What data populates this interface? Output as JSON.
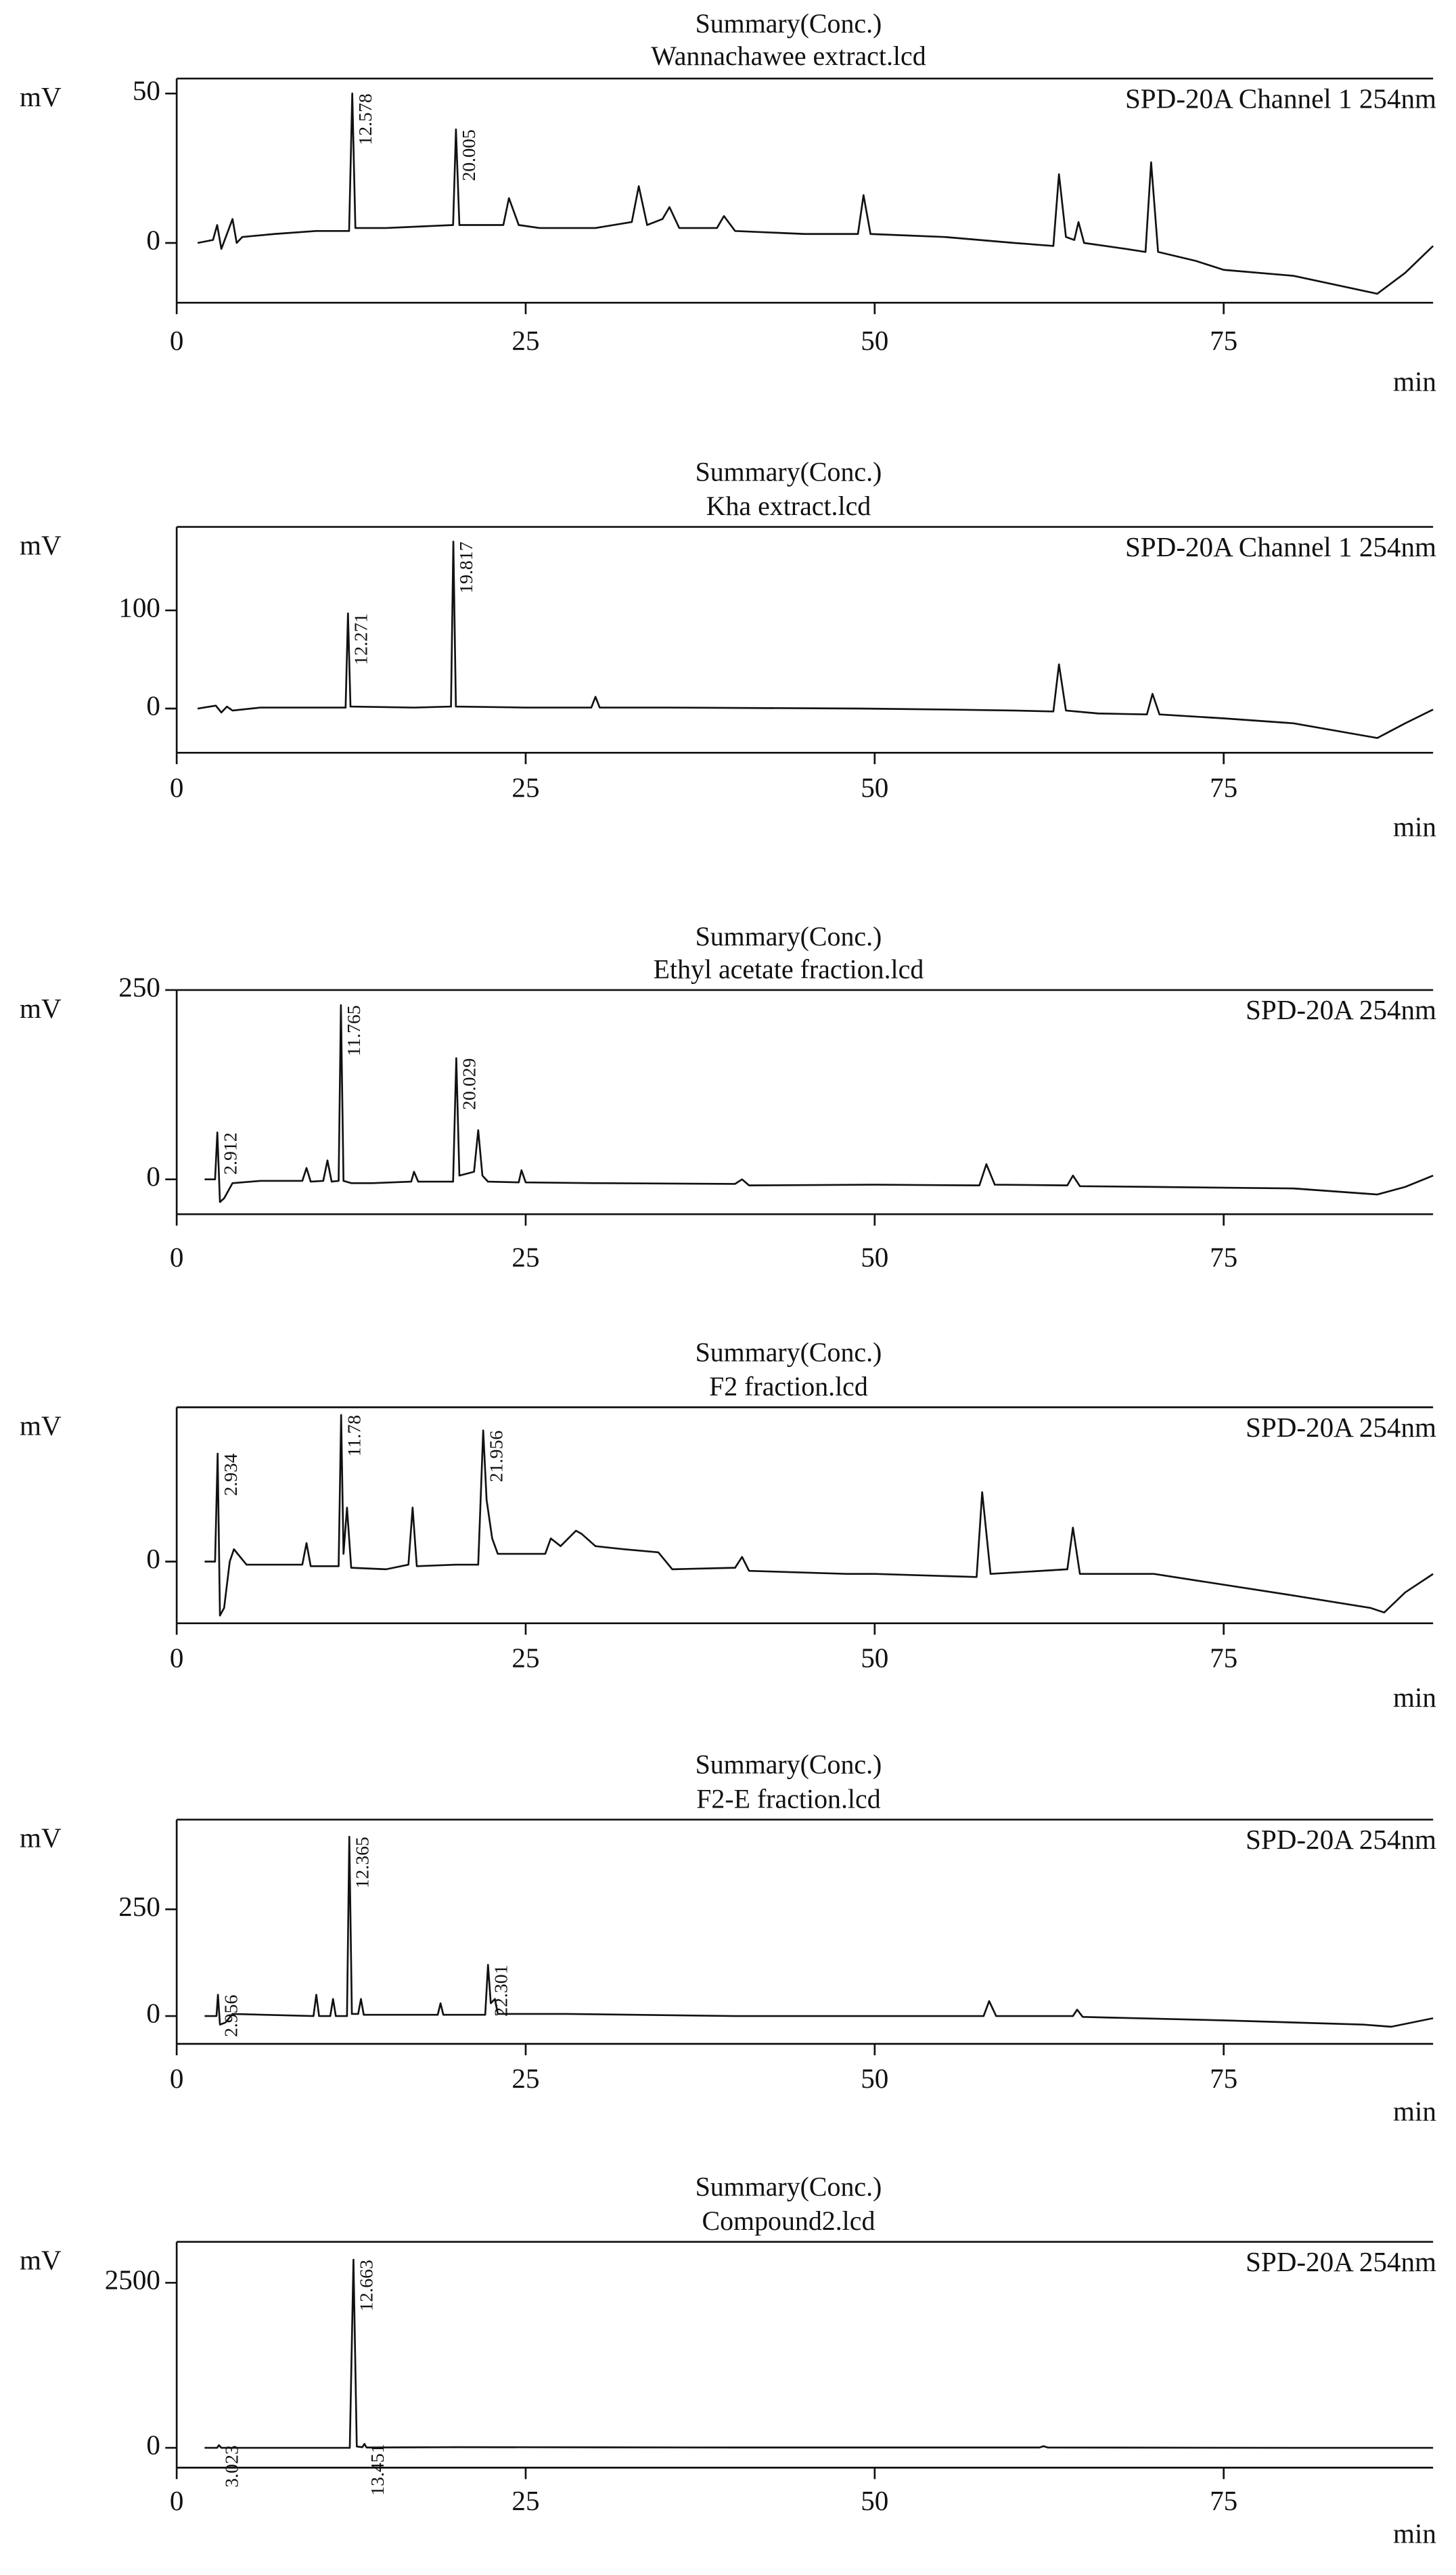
{
  "chart_data": [
    {
      "type": "line",
      "title": "Summary(Conc.)",
      "subtitle": "Wannachawee extract.lcd",
      "ylabel": "mV",
      "xlabel": "min",
      "annotation": "SPD-20A Channel 1 254nm",
      "color": "#111111",
      "xlim": [
        0,
        90
      ],
      "xticks": [
        0,
        25,
        50,
        75
      ],
      "ylim": [
        -20,
        55
      ],
      "yticks": [
        0,
        50
      ],
      "peak_labels": [
        12.578,
        20.005
      ],
      "x": [
        1.5,
        2.6,
        2.9,
        3.2,
        3.6,
        4.0,
        4.3,
        4.7,
        7,
        10,
        12.35,
        12.578,
        12.8,
        15,
        19.8,
        20.005,
        20.25,
        23.4,
        23.8,
        24.5,
        26,
        30,
        32.6,
        33.1,
        33.7,
        34.8,
        35.3,
        36,
        38.7,
        39.2,
        40,
        45,
        48.8,
        49.2,
        49.7,
        55,
        60,
        62.8,
        63.2,
        63.7,
        64.3,
        64.6,
        65,
        68,
        69.4,
        69.8,
        70.3,
        73,
        75,
        80,
        86,
        88,
        90
      ],
      "values": [
        0,
        1,
        6,
        -2,
        3,
        8,
        0,
        2,
        3,
        4,
        4,
        50,
        5,
        5,
        6,
        38,
        6,
        6,
        15,
        6,
        5,
        5,
        7,
        19,
        6,
        8,
        12,
        5,
        5,
        9,
        4,
        3,
        3,
        16,
        3,
        2,
        0,
        -1,
        23,
        2,
        1,
        7,
        0,
        -2,
        -3,
        27,
        -3,
        -6,
        -9,
        -11,
        -17,
        -10,
        -1
      ]
    },
    {
      "type": "line",
      "title": "Summary(Conc.)",
      "subtitle": "Kha extract.lcd",
      "ylabel": "mV",
      "xlabel": "min",
      "annotation": "SPD-20A Channel 1 254nm",
      "color": "#111111",
      "xlim": [
        0,
        90
      ],
      "xticks": [
        0,
        25,
        50,
        75
      ],
      "ylim": [
        -45,
        185
      ],
      "yticks": [
        0,
        100
      ],
      "peak_labels": [
        12.271,
        19.817
      ],
      "x": [
        1.5,
        2.8,
        3.2,
        3.6,
        4,
        6,
        10,
        12.1,
        12.271,
        12.45,
        17,
        19.65,
        19.817,
        20,
        25,
        29.7,
        30,
        30.3,
        35,
        49,
        55,
        60,
        62.8,
        63.2,
        63.7,
        66,
        69.5,
        69.9,
        70.4,
        75,
        80,
        86,
        88,
        90
      ],
      "values": [
        0,
        3,
        -4,
        2,
        -2,
        1,
        1,
        1,
        97,
        2,
        1,
        2,
        170,
        2,
        1,
        1,
        12,
        1,
        1,
        0,
        -1,
        -2,
        -3,
        45,
        -2,
        -5,
        -6,
        15,
        -6,
        -10,
        -15,
        -30,
        -15,
        -1
      ]
    },
    {
      "type": "line",
      "title": "Summary(Conc.)",
      "subtitle": "Ethyl acetate fraction.lcd",
      "ylabel": "mV",
      "annotation": "SPD-20A 254nm",
      "color": "#111111",
      "xlim": [
        0,
        90
      ],
      "xticks": [
        0,
        25,
        50,
        75
      ],
      "ylim": [
        -46,
        250
      ],
      "yticks": [
        0,
        250
      ],
      "peak_labels": [
        2.912,
        11.765,
        20.029
      ],
      "x": [
        2,
        2.75,
        2.912,
        3.1,
        3.4,
        4,
        6,
        9,
        9.3,
        9.6,
        10.5,
        10.8,
        11.1,
        11.6,
        11.765,
        11.95,
        12.5,
        14,
        16.8,
        17,
        17.3,
        19.8,
        20.029,
        20.25,
        21.3,
        21.6,
        21.9,
        22.3,
        24.5,
        24.7,
        25,
        30,
        40,
        40.5,
        41,
        50,
        57.5,
        58,
        58.6,
        63.8,
        64.2,
        64.7,
        70,
        80,
        86,
        88,
        90
      ],
      "values": [
        0,
        0,
        62,
        -30,
        -25,
        -5,
        -2,
        -2,
        15,
        -3,
        -2,
        25,
        -3,
        -2,
        230,
        -2,
        -5,
        -5,
        -3,
        10,
        -3,
        -3,
        160,
        5,
        10,
        65,
        5,
        -3,
        -4,
        12,
        -4,
        -5,
        -6,
        0,
        -8,
        -7,
        -8,
        20,
        -7,
        -8,
        5,
        -9,
        -10,
        -12,
        -20,
        -10,
        5
      ]
    },
    {
      "type": "line",
      "title": "Summary(Conc.)",
      "subtitle": "F2 fraction.lcd",
      "ylabel": "mV",
      "xlabel": "min",
      "annotation": "SPD-20A 254nm",
      "color": "#111111",
      "xlim": [
        0,
        90
      ],
      "xticks": [
        0,
        25,
        50,
        75
      ],
      "ylim": [
        -40,
        100
      ],
      "yticks": [
        0
      ],
      "peak_labels": [
        2.934,
        11.78,
        21.956
      ],
      "x": [
        2,
        2.75,
        2.934,
        3.1,
        3.4,
        3.8,
        4.1,
        5,
        9,
        9.3,
        9.6,
        11.6,
        11.78,
        11.95,
        12.2,
        12.5,
        15,
        16.6,
        16.9,
        17.2,
        20,
        21.6,
        21.956,
        22.2,
        22.6,
        23,
        26.4,
        26.8,
        27.5,
        28.6,
        29,
        30,
        32,
        34.5,
        35.5,
        40,
        40.5,
        41,
        48,
        50,
        57.3,
        57.7,
        58.3,
        63.8,
        64.2,
        64.7,
        70,
        80,
        85.5,
        86.5,
        88,
        90
      ],
      "values": [
        0,
        0,
        70,
        -35,
        -30,
        0,
        8,
        -2,
        -2,
        12,
        -3,
        -3,
        95,
        5,
        35,
        -4,
        -5,
        -2,
        35,
        -3,
        -2,
        -2,
        85,
        40,
        15,
        5,
        5,
        15,
        10,
        20,
        18,
        10,
        8,
        6,
        -5,
        -4,
        3,
        -6,
        -8,
        -8,
        -10,
        45,
        -8,
        -5,
        22,
        -8,
        -8,
        -22,
        -30,
        -33,
        -20,
        -8
      ]
    },
    {
      "type": "line",
      "title": "Summary(Conc.)",
      "subtitle": "F2-E fraction.lcd",
      "ylabel": "mV",
      "xlabel": "min",
      "annotation": "SPD-20A 254nm",
      "color": "#111111",
      "xlim": [
        0,
        90
      ],
      "xticks": [
        0,
        25,
        50,
        75
      ],
      "ylim": [
        -65,
        460
      ],
      "yticks": [
        0,
        250
      ],
      "peak_labels": [
        2.956,
        12.365,
        22.301
      ],
      "x": [
        2,
        2.85,
        2.956,
        3.1,
        3.5,
        4,
        9.8,
        10,
        10.2,
        11,
        11.2,
        11.4,
        12.2,
        12.365,
        12.55,
        13,
        13.2,
        13.4,
        18.7,
        18.9,
        19.1,
        22.1,
        22.301,
        22.5,
        22.8,
        23,
        28,
        40,
        50,
        57.8,
        58.2,
        58.7,
        64.2,
        64.5,
        64.9,
        75,
        85,
        87,
        90
      ],
      "values": [
        0,
        0,
        50,
        -20,
        -15,
        5,
        0,
        50,
        0,
        0,
        40,
        0,
        0,
        420,
        5,
        5,
        40,
        3,
        3,
        30,
        3,
        3,
        120,
        30,
        40,
        5,
        5,
        0,
        0,
        0,
        35,
        0,
        0,
        15,
        -2,
        -10,
        -20,
        -25,
        -5
      ]
    },
    {
      "type": "line",
      "title": "Summary(Conc.)",
      "subtitle": "Compound2.lcd",
      "ylabel": "mV",
      "xlabel": "min",
      "annotation": "SPD-20A 254nm",
      "color": "#111111",
      "xlim": [
        0,
        90
      ],
      "xticks": [
        0,
        25,
        50,
        75
      ],
      "ylim": [
        -300,
        3120
      ],
      "yticks": [
        0,
        2500
      ],
      "peak_labels": [
        3.023,
        12.663,
        13.451
      ],
      "x": [
        2,
        2.9,
        3.023,
        3.2,
        5,
        12.4,
        12.663,
        12.9,
        13.3,
        13.451,
        13.6,
        20,
        40,
        61.8,
        62.1,
        62.4,
        80,
        90
      ],
      "values": [
        0,
        0,
        40,
        0,
        0,
        0,
        2850,
        20,
        10,
        60,
        5,
        10,
        5,
        5,
        25,
        5,
        0,
        0
      ]
    }
  ]
}
